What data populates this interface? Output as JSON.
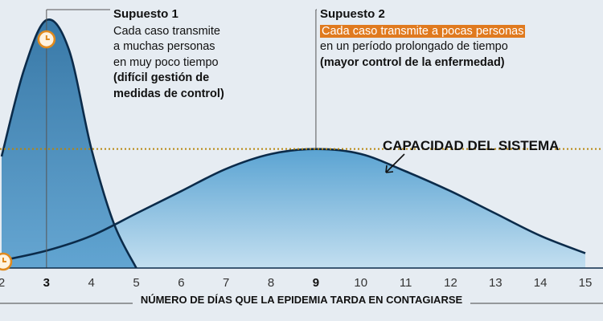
{
  "chart_data": {
    "type": "area",
    "x_ticks": [
      2,
      3,
      4,
      5,
      6,
      7,
      8,
      9,
      10,
      11,
      12,
      13,
      14,
      15
    ],
    "bold_ticks": [
      3,
      9
    ],
    "xlabel": "NÚMERO DE DÍAS QUE LA EPIDEMIA TARDA EN CONTAGIARSE",
    "capacity_label": "CAPACIDAD DEL SISTEMA",
    "series": [
      {
        "key": "s1",
        "x": [
          2,
          2.5,
          3,
          3.5,
          4,
          4.5,
          5
        ],
        "y": [
          0.45,
          0.8,
          1.0,
          0.88,
          0.48,
          0.18,
          0.0
        ]
      },
      {
        "key": "s2",
        "x": [
          2,
          3,
          4,
          5,
          6,
          7,
          8,
          9,
          10,
          11,
          12,
          13,
          14,
          15
        ],
        "y": [
          0.03,
          0.07,
          0.13,
          0.22,
          0.31,
          0.4,
          0.46,
          0.48,
          0.46,
          0.39,
          0.31,
          0.22,
          0.13,
          0.06
        ]
      }
    ],
    "capacity_level": 0.48,
    "colors": {
      "s1_fill_top": "#2a6fa1",
      "s1_fill_bottom": "#5aa0cf",
      "s2_fill_top": "#5aa3d2",
      "s2_fill_bottom": "#c3dff0",
      "curve": "#0b2b4a",
      "capacity": "#b8860b",
      "clock": "#e08a1e"
    }
  },
  "annotations": {
    "supuesto1": {
      "title": "Supuesto 1",
      "lines": [
        "Cada caso transmite",
        "a muchas personas",
        "en muy poco tiempo"
      ],
      "bold_lines": [
        "(difícil gestión de",
        "medidas de control)"
      ]
    },
    "supuesto2": {
      "title": "Supuesto 2",
      "highlight": "Cada caso transmite a pocas personas",
      "line": "en un período prolongado de tiempo",
      "bold_line": "(mayor control de la enfermedad)"
    }
  }
}
